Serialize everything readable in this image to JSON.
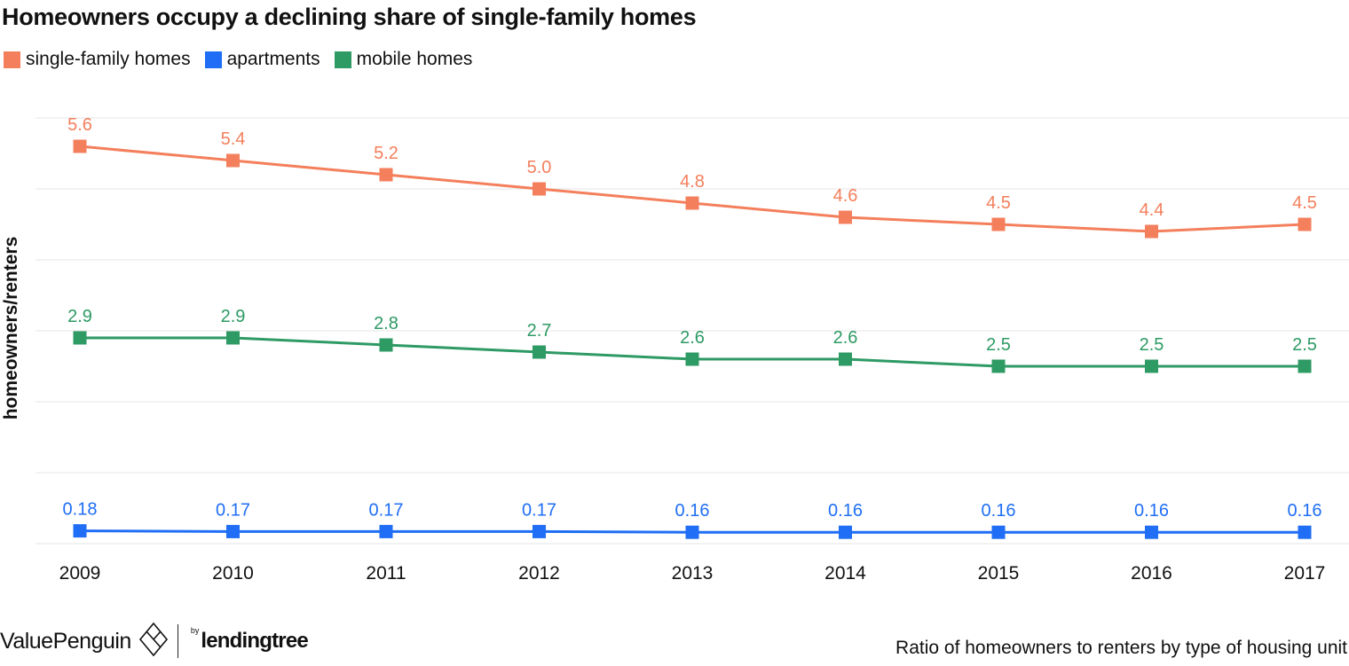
{
  "title": "Homeowners occupy a declining share of single-family homes",
  "caption": "Ratio of homeowners to renters by type of housing unit",
  "branding": {
    "valuepenguin": "ValuePenguin",
    "by": "by",
    "lendingtree": "lendingtree"
  },
  "colors": {
    "single_family": "#f47f5c",
    "apartments": "#1f6ef5",
    "mobile": "#2e9a64",
    "grid": "#e4e4e4",
    "text": "#111111"
  },
  "chart_data": {
    "type": "line",
    "title": "Homeowners occupy a declining share of single-family homes",
    "ylabel": "homeowners/renters",
    "xlabel": "",
    "x": [
      "2009",
      "2010",
      "2011",
      "2012",
      "2013",
      "2014",
      "2015",
      "2016",
      "2017"
    ],
    "ylim": [
      0,
      6
    ],
    "grid": true,
    "legend_position": "top-left",
    "series": [
      {
        "key": "single_family",
        "name": "single-family homes",
        "values": [
          5.6,
          5.4,
          5.2,
          5.0,
          4.8,
          4.6,
          4.5,
          4.4,
          4.5
        ],
        "labels": [
          "5.6",
          "5.4",
          "5.2",
          "5.0",
          "4.8",
          "4.6",
          "4.5",
          "4.4",
          "4.5"
        ]
      },
      {
        "key": "apartments",
        "name": "apartments",
        "values": [
          0.18,
          0.17,
          0.17,
          0.17,
          0.16,
          0.16,
          0.16,
          0.16,
          0.16
        ],
        "labels": [
          "0.18",
          "0.17",
          "0.17",
          "0.17",
          "0.16",
          "0.16",
          "0.16",
          "0.16",
          "0.16"
        ]
      },
      {
        "key": "mobile",
        "name": "mobile homes",
        "values": [
          2.9,
          2.9,
          2.8,
          2.7,
          2.6,
          2.6,
          2.5,
          2.5,
          2.5
        ],
        "labels": [
          "2.9",
          "2.9",
          "2.8",
          "2.7",
          "2.6",
          "2.6",
          "2.5",
          "2.5",
          "2.5"
        ]
      }
    ]
  }
}
